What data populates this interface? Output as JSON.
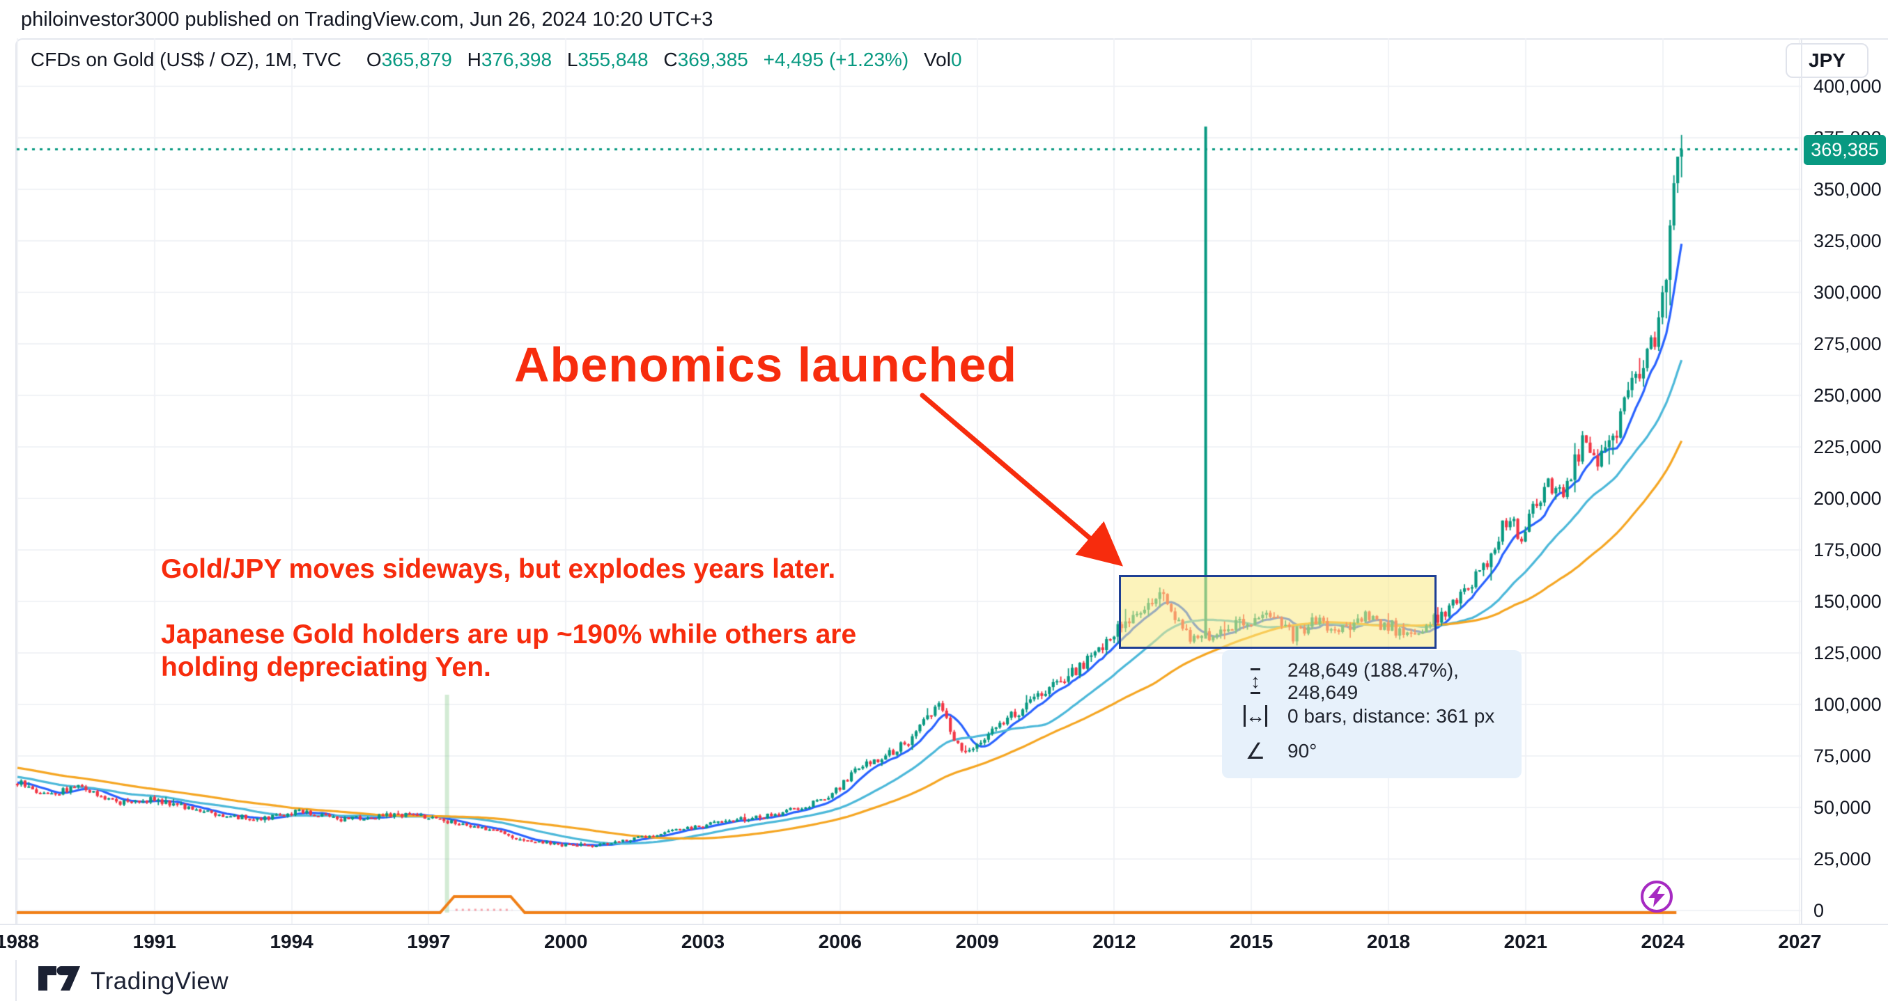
{
  "header": {
    "publish_line": "philoinvestor3000 published on TradingView.com, Jun 26, 2024 10:20 UTC+3"
  },
  "legend": {
    "symbol": "CFDs on Gold (US$ / OZ), 1M, TVC",
    "o_label": "O",
    "o": "365,879",
    "h_label": "H",
    "h": "376,398",
    "l_label": "L",
    "l": "355,848",
    "c_label": "C",
    "c": "369,385",
    "change": "+4,495 (+1.23%)",
    "vol_label": "Vol",
    "vol": "0"
  },
  "currency_button": "JPY",
  "price_label": "369,385",
  "watermark": "TradingView",
  "annotations": {
    "title": "Abenomics launched",
    "note_line1": "Gold/JPY moves sideways, but explodes years later.",
    "note_block2": "Japanese Gold holders are up ~190% while others are\nholding depreciating Yen.",
    "tooltip": {
      "row1": "248,649 (188.47%), 248,649",
      "row2": "0 bars, distance: 361 px",
      "row3": "90°"
    }
  },
  "colors": {
    "candle_up": "#089981",
    "candle_down": "#f23645",
    "ma_fast": "#2962ff",
    "ma_mid": "#4cb8d9",
    "ma_slow": "#f5a623",
    "grid": "#f0f2f6",
    "text": "#131722",
    "accent_teal": "#089981",
    "annotation_red": "#f72c0d",
    "box_fill": "rgba(250,233,132,0.55)",
    "box_border": "#1e3f94",
    "bottom_indicator": "#f07f17",
    "event_band": "rgba(129,199,132,0.35)",
    "lightning_purple": "#a62ac2"
  },
  "chart_data": {
    "type": "candlestick",
    "title": "CFDs on Gold (US$ / OZ), 1M, TVC",
    "currency": "JPY",
    "timeframe": "1M",
    "x_axis": {
      "ticks": [
        "1988",
        "1991",
        "1994",
        "1997",
        "2000",
        "2003",
        "2006",
        "2009",
        "2012",
        "2015",
        "2018",
        "2021",
        "2024",
        "2027"
      ],
      "tick_step_years": 3,
      "grid": true
    },
    "y_axis": {
      "min": 0,
      "max": 400000,
      "tick_step": 25000,
      "grid": true,
      "ticks": [
        "400,000",
        "375,000",
        "350,000",
        "325,000",
        "300,000",
        "275,000",
        "250,000",
        "225,000",
        "200,000",
        "175,000",
        "150,000",
        "125,000",
        "100,000",
        "75,000",
        "50,000",
        "25,000",
        "0"
      ]
    },
    "last_bar": {
      "open": 365879,
      "high": 376398,
      "low": 355848,
      "close": 369385,
      "change": 4495,
      "change_pct": 1.23
    },
    "current_price": 369385,
    "trend_anchors": [
      [
        1988.0,
        63000
      ],
      [
        1988.7,
        56000
      ],
      [
        1989.4,
        60000
      ],
      [
        1990.3,
        52500
      ],
      [
        1991.0,
        54000
      ],
      [
        1991.9,
        49500
      ],
      [
        1992.7,
        45500
      ],
      [
        1993.5,
        44800
      ],
      [
        1994.25,
        48500
      ],
      [
        1995.1,
        43800
      ],
      [
        1996.0,
        46000
      ],
      [
        1996.7,
        46500
      ],
      [
        1997.4,
        43500
      ],
      [
        1998.2,
        40500
      ],
      [
        1999.0,
        35000
      ],
      [
        1999.8,
        32000
      ],
      [
        2000.6,
        31500
      ],
      [
        2001.5,
        34500
      ],
      [
        2002.5,
        39000
      ],
      [
        2003.5,
        43000
      ],
      [
        2004.5,
        46000
      ],
      [
        2005.3,
        50500
      ],
      [
        2005.95,
        58000
      ],
      [
        2006.4,
        69000
      ],
      [
        2006.9,
        73500
      ],
      [
        2007.6,
        83000
      ],
      [
        2008.2,
        101000
      ],
      [
        2008.75,
        75000
      ],
      [
        2009.4,
        88000
      ],
      [
        2010.1,
        99500
      ],
      [
        2010.9,
        112000
      ],
      [
        2011.5,
        122000
      ],
      [
        2012.0,
        134000
      ],
      [
        2012.6,
        146000
      ],
      [
        2013.1,
        155000
      ],
      [
        2013.7,
        131000
      ],
      [
        2014.4,
        135000
      ],
      [
        2015.0,
        142000
      ],
      [
        2015.5,
        143500
      ],
      [
        2015.95,
        133000
      ],
      [
        2016.45,
        140500
      ],
      [
        2016.95,
        136500
      ],
      [
        2017.55,
        141500
      ],
      [
        2018.15,
        137000
      ],
      [
        2018.6,
        134000
      ],
      [
        2019.0,
        140000
      ],
      [
        2019.4,
        148000
      ],
      [
        2019.8,
        158000
      ],
      [
        2020.2,
        170000
      ],
      [
        2020.6,
        191000
      ],
      [
        2020.95,
        183000
      ],
      [
        2021.25,
        197000
      ],
      [
        2021.55,
        207000
      ],
      [
        2021.85,
        199000
      ],
      [
        2022.1,
        216000
      ],
      [
        2022.35,
        233000
      ],
      [
        2022.6,
        219000
      ],
      [
        2022.9,
        229000
      ],
      [
        2023.2,
        243000
      ],
      [
        2023.5,
        259000
      ],
      [
        2023.8,
        273000
      ],
      [
        2024.0,
        290000
      ],
      [
        2024.17,
        320000
      ],
      [
        2024.33,
        355000
      ],
      [
        2024.45,
        369385
      ]
    ],
    "moving_averages": [
      {
        "name": "ma-fast",
        "window": 8,
        "color_key": "ma_fast"
      },
      {
        "name": "ma-mid",
        "window": 26,
        "color_key": "ma_mid"
      },
      {
        "name": "ma-slow",
        "window": 55,
        "color_key": "ma_slow"
      }
    ],
    "highlight_box": {
      "from_year": 2012.1,
      "to_year": 2019.05,
      "price_top": 163000,
      "price_bottom": 127000
    },
    "measure_line": {
      "year": 2014.0,
      "price_top": 380500,
      "price_bottom": 131900
    },
    "event_line_year": 1997.4,
    "bottom_indicator": {
      "bump_from_year": 1997.25,
      "bump_to_year": 1999.1,
      "end_x_year": 2024.3
    }
  }
}
